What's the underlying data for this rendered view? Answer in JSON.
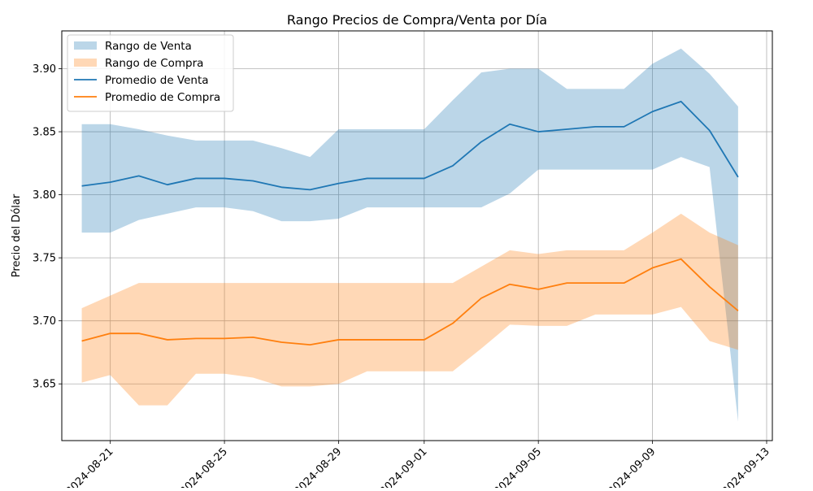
{
  "chart_data": {
    "type": "area",
    "title": "Rango Precios de Compra/Venta por Día",
    "xlabel": "",
    "ylabel": "Precio del Dólar",
    "xlim": [
      "2024-08-19",
      "2024-09-13"
    ],
    "ylim": [
      3.605,
      3.93
    ],
    "x_ticks": [
      "2024-08-21",
      "2024-08-25",
      "2024-08-29",
      "2024-09-01",
      "2024-09-05",
      "2024-09-09",
      "2024-09-13"
    ],
    "y_ticks": [
      3.65,
      3.7,
      3.75,
      3.8,
      3.85,
      3.9
    ],
    "y_tick_labels": [
      "3.65",
      "3.70",
      "3.75",
      "3.80",
      "3.85",
      "3.90"
    ],
    "grid": true,
    "legend_position": "top-left",
    "x": [
      "2024-08-20",
      "2024-08-21",
      "2024-08-22",
      "2024-08-23",
      "2024-08-24",
      "2024-08-25",
      "2024-08-26",
      "2024-08-27",
      "2024-08-28",
      "2024-08-29",
      "2024-08-30",
      "2024-08-31",
      "2024-09-01",
      "2024-09-02",
      "2024-09-03",
      "2024-09-04",
      "2024-09-05",
      "2024-09-06",
      "2024-09-07",
      "2024-09-08",
      "2024-09-09",
      "2024-09-10",
      "2024-09-11",
      "2024-09-12"
    ],
    "series": [
      {
        "name": "Rango de Venta",
        "kind": "band",
        "color": "#1f77b4",
        "opacity": 0.3,
        "upper": [
          3.856,
          3.856,
          3.852,
          3.847,
          3.843,
          3.843,
          3.843,
          3.837,
          3.83,
          3.852,
          3.852,
          3.852,
          3.852,
          3.875,
          3.897,
          3.9,
          3.9,
          3.884,
          3.884,
          3.884,
          3.904,
          3.916,
          3.896,
          3.87
        ],
        "lower": [
          3.77,
          3.77,
          3.78,
          3.785,
          3.79,
          3.79,
          3.787,
          3.779,
          3.779,
          3.781,
          3.79,
          3.79,
          3.79,
          3.79,
          3.79,
          3.801,
          3.82,
          3.82,
          3.82,
          3.82,
          3.82,
          3.83,
          3.822,
          3.62
        ]
      },
      {
        "name": "Rango de Compra",
        "kind": "band",
        "color": "#ff7f0e",
        "opacity": 0.3,
        "upper": [
          3.71,
          3.72,
          3.73,
          3.73,
          3.73,
          3.73,
          3.73,
          3.73,
          3.73,
          3.73,
          3.73,
          3.73,
          3.73,
          3.73,
          3.743,
          3.756,
          3.753,
          3.756,
          3.756,
          3.756,
          3.77,
          3.785,
          3.77,
          3.76
        ],
        "lower": [
          3.651,
          3.657,
          3.633,
          3.633,
          3.658,
          3.658,
          3.655,
          3.648,
          3.648,
          3.65,
          3.66,
          3.66,
          3.66,
          3.66,
          3.678,
          3.697,
          3.696,
          3.696,
          3.705,
          3.705,
          3.705,
          3.711,
          3.684,
          3.677
        ]
      },
      {
        "name": "Promedio de Venta",
        "kind": "line",
        "color": "#1f77b4",
        "values": [
          3.807,
          3.81,
          3.815,
          3.808,
          3.813,
          3.813,
          3.811,
          3.806,
          3.804,
          3.809,
          3.813,
          3.813,
          3.813,
          3.823,
          3.842,
          3.856,
          3.85,
          3.852,
          3.854,
          3.854,
          3.866,
          3.874,
          3.851,
          3.814
        ]
      },
      {
        "name": "Promedio de Compra",
        "kind": "line",
        "color": "#ff7f0e",
        "values": [
          3.684,
          3.69,
          3.69,
          3.685,
          3.686,
          3.686,
          3.687,
          3.683,
          3.681,
          3.685,
          3.685,
          3.685,
          3.685,
          3.698,
          3.718,
          3.729,
          3.725,
          3.73,
          3.73,
          3.73,
          3.742,
          3.749,
          3.727,
          3.708
        ]
      }
    ]
  }
}
